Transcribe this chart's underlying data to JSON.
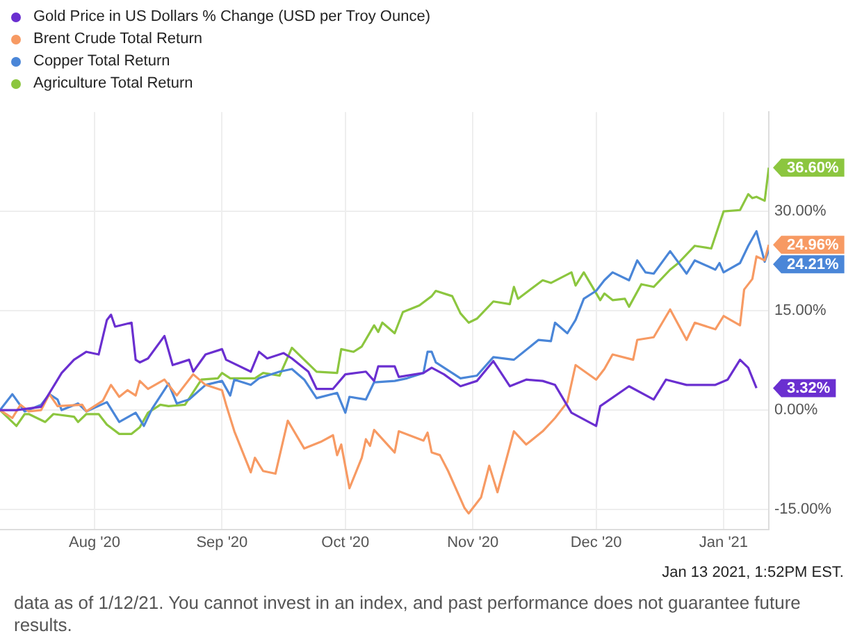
{
  "chart_data": {
    "type": "line",
    "xlim": [
      "2020-07-09",
      "2021-01-12"
    ],
    "xticks": [
      {
        "value": "2020-08-01",
        "label": "Aug '20"
      },
      {
        "value": "2020-09-01",
        "label": "Sep '20"
      },
      {
        "value": "2020-10-01",
        "label": "Oct '20"
      },
      {
        "value": "2020-11-01",
        "label": "Nov '20"
      },
      {
        "value": "2020-12-01",
        "label": "Dec '20"
      },
      {
        "value": "2021-01-01",
        "label": "Jan '21"
      }
    ],
    "ylim": [
      -18,
      45
    ],
    "yticks": [
      {
        "value": -15,
        "label": "-15.00%"
      },
      {
        "value": 0,
        "label": "0.00%"
      },
      {
        "value": 15,
        "label": "15.00%"
      },
      {
        "value": 30,
        "label": "30.00%"
      }
    ],
    "grid": true,
    "legend": "top left",
    "marker": "none",
    "line_style": "solid",
    "series": [
      {
        "name": "Gold Price in US Dollars % Change (USD per Troy Ounce)",
        "color": "#6a2fd0",
        "x": [
          "2020-07-09",
          "2020-07-13",
          "2020-07-19",
          "2020-07-24",
          "2020-07-27",
          "2020-07-30",
          "2020-08-02",
          "2020-08-04",
          "2020-08-05",
          "2020-08-06",
          "2020-08-10",
          "2020-08-11",
          "2020-08-12",
          "2020-08-14",
          "2020-08-18",
          "2020-08-20",
          "2020-08-24",
          "2020-08-25",
          "2020-08-28",
          "2020-09-01",
          "2020-09-02",
          "2020-09-08",
          "2020-09-10",
          "2020-09-12",
          "2020-09-16",
          "2020-09-18",
          "2020-09-22",
          "2020-09-24",
          "2020-09-28",
          "2020-10-01",
          "2020-10-06",
          "2020-10-08",
          "2020-10-09",
          "2020-10-13",
          "2020-10-14",
          "2020-10-20",
          "2020-10-22",
          "2020-10-25",
          "2020-10-29",
          "2020-11-02",
          "2020-11-06",
          "2020-11-10",
          "2020-11-14",
          "2020-11-18",
          "2020-11-21",
          "2020-11-25",
          "2020-11-28",
          "2020-12-01",
          "2020-12-02",
          "2020-12-09",
          "2020-12-15",
          "2020-12-18",
          "2020-12-23",
          "2020-12-30",
          "2021-01-02",
          "2021-01-05",
          "2021-01-07",
          "2021-01-09"
        ],
        "values": [
          0,
          0,
          0.5,
          5.6,
          7.6,
          8.8,
          8.4,
          13.6,
          14.4,
          12.6,
          13.2,
          7.6,
          7.2,
          7.8,
          11.2,
          6.8,
          7.6,
          5.8,
          8.4,
          9.2,
          7.6,
          5.8,
          8.8,
          7.8,
          8.6,
          7.8,
          5.8,
          3.2,
          3.2,
          5.4,
          5.8,
          4.4,
          6.6,
          6.6,
          5.0,
          5.6,
          6.4,
          5.4,
          3.6,
          4.4,
          7.4,
          3.6,
          4.6,
          4.4,
          3.8,
          -0.4,
          -1.4,
          -2.4,
          0.6,
          3.6,
          1.6,
          4.6,
          3.8,
          3.8,
          4.6,
          7.6,
          6.4,
          3.32
        ]
      },
      {
        "name": "Brent Crude Total Return",
        "color": "#f79a63",
        "x": [
          "2020-07-09",
          "2020-07-12",
          "2020-07-14",
          "2020-07-16",
          "2020-07-19",
          "2020-07-21",
          "2020-07-23",
          "2020-07-29",
          "2020-07-30",
          "2020-08-03",
          "2020-08-05",
          "2020-08-07",
          "2020-08-09",
          "2020-08-11",
          "2020-08-12",
          "2020-08-14",
          "2020-08-18",
          "2020-08-21",
          "2020-08-25",
          "2020-08-28",
          "2020-09-01",
          "2020-09-02",
          "2020-09-04",
          "2020-09-08",
          "2020-09-09",
          "2020-09-11",
          "2020-09-14",
          "2020-09-17",
          "2020-09-21",
          "2020-09-25",
          "2020-09-28",
          "2020-09-29",
          "2020-09-30",
          "2020-10-02",
          "2020-10-05",
          "2020-10-06",
          "2020-10-07",
          "2020-10-08",
          "2020-10-13",
          "2020-10-14",
          "2020-10-20",
          "2020-10-21",
          "2020-10-22",
          "2020-10-24",
          "2020-10-26",
          "2020-10-30",
          "2020-10-31",
          "2020-11-03",
          "2020-11-05",
          "2020-11-07",
          "2020-11-11",
          "2020-11-14",
          "2020-11-18",
          "2020-11-21",
          "2020-11-24",
          "2020-11-26",
          "2020-12-01",
          "2020-12-03",
          "2020-12-05",
          "2020-12-10",
          "2020-12-11",
          "2020-12-15",
          "2020-12-19",
          "2020-12-23",
          "2020-12-25",
          "2020-12-30",
          "2021-01-01",
          "2021-01-05",
          "2021-01-06",
          "2021-01-08",
          "2021-01-09",
          "2021-01-11",
          "2021-01-12"
        ],
        "values": [
          0,
          -1.2,
          0.8,
          -0.2,
          0,
          2.4,
          0.6,
          0.8,
          -0.2,
          1.4,
          3.8,
          2.0,
          3.0,
          2.2,
          4.4,
          3.2,
          4.6,
          2.2,
          5.4,
          3.8,
          3.0,
          0.8,
          -3.2,
          -9.4,
          -7.2,
          -9.2,
          -9.6,
          -1.6,
          -5.8,
          -4.8,
          -3.8,
          -6.8,
          -5.2,
          -11.8,
          -7.2,
          -4.4,
          -5.4,
          -3.0,
          -6.4,
          -3.2,
          -4.6,
          -3.4,
          -6.4,
          -6.8,
          -9.2,
          -14.8,
          -15.6,
          -13.2,
          -8.4,
          -12.4,
          -3.2,
          -5.2,
          -3.2,
          -1.2,
          1.2,
          6.8,
          4.6,
          6.2,
          8.4,
          7.6,
          10.6,
          11.0,
          15.2,
          10.6,
          13.2,
          12.2,
          14.2,
          12.8,
          18.2,
          19.8,
          23.2,
          22.6,
          24.96
        ]
      },
      {
        "name": "Copper Total Return",
        "color": "#4a86d8",
        "x": [
          "2020-07-09",
          "2020-07-12",
          "2020-07-15",
          "2020-07-19",
          "2020-07-21",
          "2020-07-23",
          "2020-07-24",
          "2020-07-28",
          "2020-07-30",
          "2020-08-04",
          "2020-08-07",
          "2020-08-11",
          "2020-08-13",
          "2020-08-15",
          "2020-08-19",
          "2020-08-21",
          "2020-08-24",
          "2020-08-28",
          "2020-09-01",
          "2020-09-03",
          "2020-09-04",
          "2020-09-08",
          "2020-09-10",
          "2020-09-15",
          "2020-09-18",
          "2020-09-21",
          "2020-09-24",
          "2020-09-29",
          "2020-10-01",
          "2020-10-02",
          "2020-10-06",
          "2020-10-08",
          "2020-10-13",
          "2020-10-16",
          "2020-10-20",
          "2020-10-21",
          "2020-10-22",
          "2020-10-23",
          "2020-10-29",
          "2020-11-02",
          "2020-11-06",
          "2020-11-11",
          "2020-11-17",
          "2020-11-20",
          "2020-11-21",
          "2020-11-24",
          "2020-11-26",
          "2020-11-28",
          "2020-12-01",
          "2020-12-03",
          "2020-12-05",
          "2020-12-09",
          "2020-12-11",
          "2020-12-13",
          "2020-12-15",
          "2020-12-19",
          "2020-12-23",
          "2020-12-25",
          "2020-12-30",
          "2020-12-31",
          "2021-01-01",
          "2021-01-05",
          "2021-01-07",
          "2021-01-09",
          "2021-01-11",
          "2021-01-12"
        ],
        "values": [
          0,
          2.4,
          -0.2,
          0.8,
          2.4,
          1.6,
          0,
          1.0,
          -0.2,
          1.2,
          -1.8,
          -0.4,
          -2.4,
          0.2,
          4.0,
          1.0,
          1.6,
          3.8,
          4.4,
          2.2,
          4.6,
          3.8,
          4.8,
          5.8,
          6.2,
          4.6,
          1.8,
          2.6,
          -0.4,
          2.0,
          1.6,
          4.2,
          4.4,
          4.8,
          5.6,
          8.8,
          8.8,
          7.2,
          4.8,
          5.2,
          8.0,
          7.6,
          10.6,
          10.4,
          13.2,
          11.6,
          13.6,
          16.8,
          18.0,
          19.6,
          20.8,
          19.6,
          22.6,
          20.8,
          20.6,
          24.0,
          20.6,
          22.6,
          21.2,
          22.2,
          20.8,
          22.2,
          24.8,
          27.0,
          22.4,
          24.21
        ]
      },
      {
        "name": "Agriculture Total Return",
        "color": "#8cc63f",
        "x": [
          "2020-07-09",
          "2020-07-13",
          "2020-07-15",
          "2020-07-16",
          "2020-07-20",
          "2020-07-22",
          "2020-07-27",
          "2020-07-28",
          "2020-07-30",
          "2020-08-02",
          "2020-08-04",
          "2020-08-07",
          "2020-08-10",
          "2020-08-12",
          "2020-08-14",
          "2020-08-17",
          "2020-08-19",
          "2020-08-23",
          "2020-08-27",
          "2020-08-31",
          "2020-09-01",
          "2020-09-03",
          "2020-09-09",
          "2020-09-11",
          "2020-09-15",
          "2020-09-18",
          "2020-09-22",
          "2020-09-24",
          "2020-09-29",
          "2020-09-30",
          "2020-10-03",
          "2020-10-05",
          "2020-10-08",
          "2020-10-09",
          "2020-10-10",
          "2020-10-13",
          "2020-10-15",
          "2020-10-19",
          "2020-10-22",
          "2020-10-23",
          "2020-10-27",
          "2020-10-29",
          "2020-10-31",
          "2020-11-02",
          "2020-11-06",
          "2020-11-10",
          "2020-11-11",
          "2020-11-12",
          "2020-11-18",
          "2020-11-20",
          "2020-11-25",
          "2020-11-26",
          "2020-11-28",
          "2020-12-02",
          "2020-12-03",
          "2020-12-05",
          "2020-12-08",
          "2020-12-09",
          "2020-12-12",
          "2020-12-15",
          "2020-12-19",
          "2020-12-21",
          "2020-12-25",
          "2020-12-29",
          "2021-01-01",
          "2021-01-05",
          "2021-01-07",
          "2021-01-08",
          "2021-01-09",
          "2021-01-11",
          "2021-01-12"
        ],
        "values": [
          0,
          -2.4,
          -0.6,
          -0.6,
          -1.8,
          -0.6,
          -1.0,
          -1.8,
          -0.6,
          -0.6,
          -2.2,
          -3.6,
          -3.6,
          -2.6,
          -0.4,
          0.8,
          0.6,
          0.8,
          4.6,
          4.8,
          5.6,
          4.8,
          4.8,
          5.6,
          5.2,
          9.4,
          7.0,
          5.8,
          5.6,
          9.2,
          8.8,
          9.6,
          12.8,
          11.8,
          13.2,
          11.6,
          14.8,
          15.8,
          17.2,
          18.0,
          17.2,
          14.6,
          13.2,
          13.8,
          16.4,
          16.0,
          18.6,
          16.8,
          19.6,
          19.2,
          20.8,
          18.8,
          20.8,
          16.6,
          17.6,
          16.6,
          16.8,
          15.6,
          19.0,
          18.6,
          21.2,
          22.2,
          24.8,
          24.4,
          30.0,
          30.2,
          32.6,
          32.0,
          32.2,
          31.6,
          36.6
        ]
      }
    ],
    "annotations": [
      {
        "text": "36.60%",
        "x": "2021-01-12",
        "y": 36.6
      },
      {
        "text": "24.96%",
        "x": "2021-01-12",
        "y": 24.96
      },
      {
        "text": "24.21%",
        "x": "2021-01-12",
        "y": 24.21
      },
      {
        "text": "3.32%",
        "x": "2021-01-09",
        "y": 3.32
      },
      "Jan 13 2021, 1:52PM EST.",
      "data as of 1/12/21. You cannot invest in an index, and past performance does not guarantee future results."
    ]
  }
}
